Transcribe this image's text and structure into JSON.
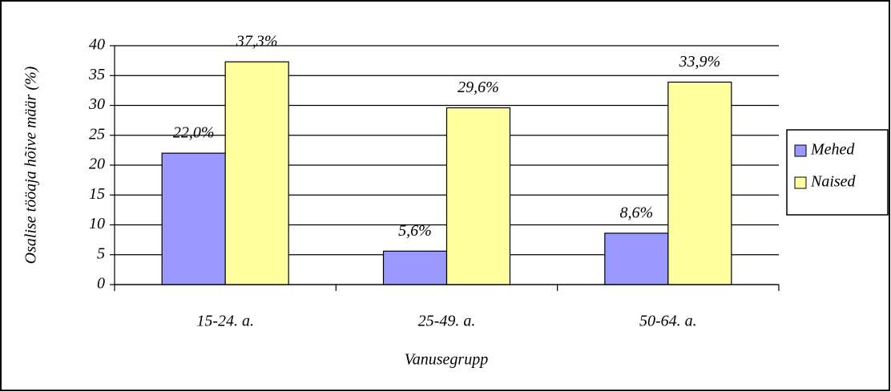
{
  "chart_data": {
    "type": "bar",
    "x_label": "Vanusegrupp",
    "y_label": "Osalise tööaja hõive määr (%)",
    "categories": [
      "15-24. a.",
      "25-49. a.",
      "50-64. a."
    ],
    "series": [
      {
        "name": "Mehed",
        "color": "#9999ff",
        "values": [
          22.0,
          5.6,
          8.6
        ],
        "value_labels": [
          "22,0%",
          "5,6%",
          "8,6%"
        ]
      },
      {
        "name": "Naised",
        "color": "#ffffa0",
        "values": [
          37.3,
          29.6,
          33.9
        ],
        "value_labels": [
          "37,3%",
          "29,6%",
          "33,9%"
        ]
      }
    ],
    "ylim": [
      0,
      40
    ],
    "yticks": [
      0,
      5,
      10,
      15,
      20,
      25,
      30,
      35,
      40
    ],
    "grid": true,
    "legend": "right"
  }
}
